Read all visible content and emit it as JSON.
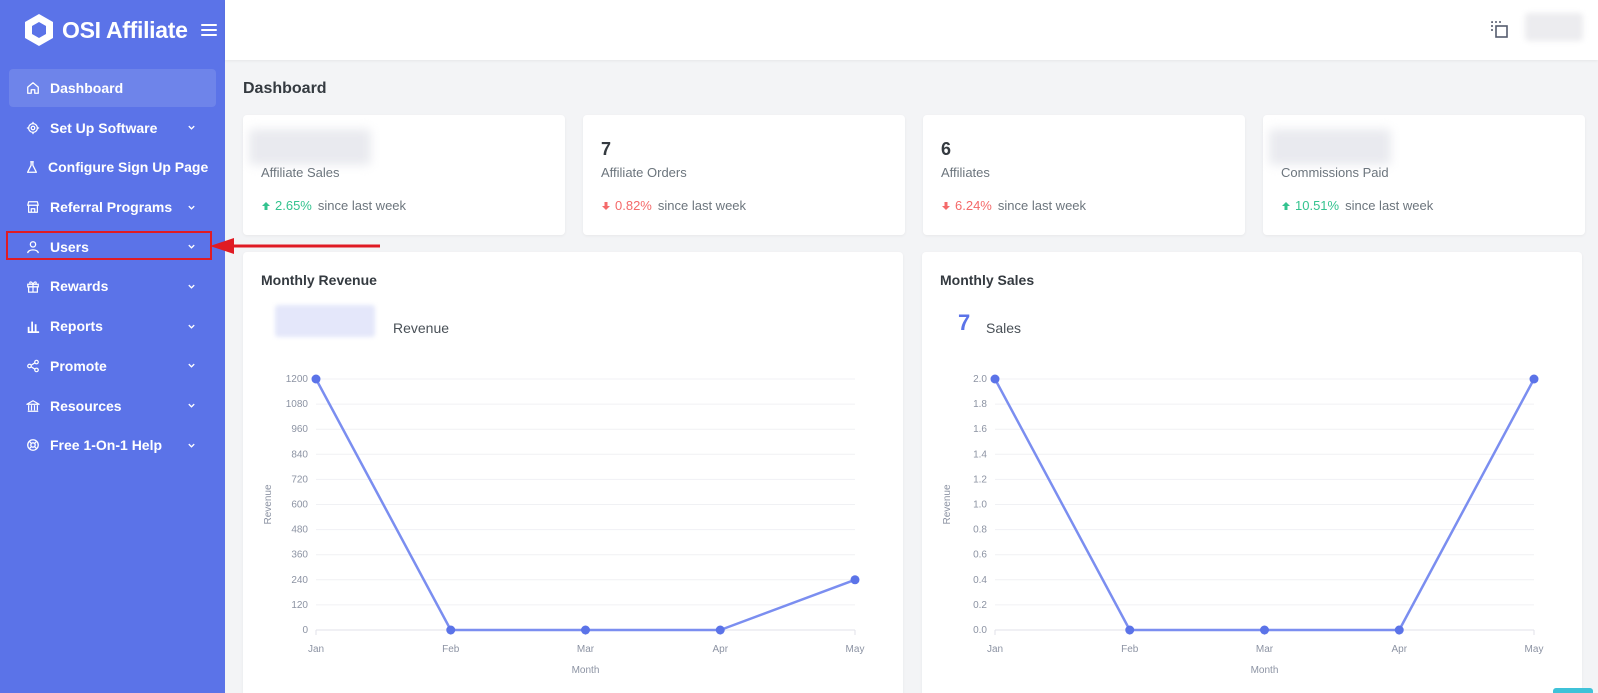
{
  "brand": {
    "name": "OSI Affiliate"
  },
  "sidebar": {
    "items": [
      {
        "label": "Dashboard",
        "icon": "home-icon",
        "active": true,
        "has_chevron": false
      },
      {
        "label": "Set Up Software",
        "icon": "gear-icon",
        "active": false,
        "has_chevron": true
      },
      {
        "label": "Configure Sign Up Page",
        "icon": "flask-icon",
        "active": false,
        "has_chevron": false
      },
      {
        "label": "Referral Programs",
        "icon": "store-icon",
        "active": false,
        "has_chevron": true
      },
      {
        "label": "Users",
        "icon": "user-icon",
        "active": false,
        "has_chevron": true
      },
      {
        "label": "Rewards",
        "icon": "gift-icon",
        "active": false,
        "has_chevron": true
      },
      {
        "label": "Reports",
        "icon": "bar-chart-icon",
        "active": false,
        "has_chevron": true
      },
      {
        "label": "Promote",
        "icon": "share-icon",
        "active": false,
        "has_chevron": true
      },
      {
        "label": "Resources",
        "icon": "bank-icon",
        "active": false,
        "has_chevron": true
      },
      {
        "label": "Free 1-On-1 Help",
        "icon": "lifebuoy-icon",
        "active": false,
        "has_chevron": true
      }
    ]
  },
  "page": {
    "title": "Dashboard"
  },
  "stats": [
    {
      "value": "",
      "label": "Affiliate Sales",
      "change": "2.65%",
      "direction": "up",
      "since": "since last week"
    },
    {
      "value": "7",
      "label": "Affiliate Orders",
      "change": "0.82%",
      "direction": "down",
      "since": "since last week"
    },
    {
      "value": "6",
      "label": "Affiliates",
      "change": "6.24%",
      "direction": "down",
      "since": "since last week"
    },
    {
      "value": "",
      "label": "Commissions Paid",
      "change": "10.51%",
      "direction": "up",
      "since": "since last week"
    }
  ],
  "revenue_card": {
    "title": "Monthly Revenue",
    "value": "",
    "label": "Revenue"
  },
  "sales_card": {
    "title": "Monthly Sales",
    "value": "7",
    "label": "Sales"
  },
  "colors": {
    "accent": "#5b73e8",
    "up": "#34c38f",
    "down": "#f46a6a",
    "line": "#7b8ef0",
    "annotation": "#e01b24"
  },
  "chart_data": [
    {
      "type": "line",
      "x": [
        "Jan",
        "Feb",
        "Mar",
        "Apr",
        "May"
      ],
      "series": [
        {
          "values": [
            1200,
            0,
            0,
            0,
            240
          ]
        }
      ],
      "xlabel": "Month",
      "ylabel": "Revenue",
      "ylim": [
        0,
        1200
      ],
      "yticks": [
        "0",
        "120",
        "240",
        "360",
        "480",
        "600",
        "720",
        "840",
        "960",
        "1080",
        "1200"
      ],
      "grid": true
    },
    {
      "type": "line",
      "x": [
        "Jan",
        "Feb",
        "Mar",
        "Apr",
        "May"
      ],
      "series": [
        {
          "values": [
            2.0,
            0,
            0,
            0,
            2.0
          ]
        }
      ],
      "xlabel": "Month",
      "ylabel": "Revenue",
      "ylim": [
        0,
        2
      ],
      "yticks": [
        "0.0",
        "0.2",
        "0.4",
        "0.6",
        "0.8",
        "1.0",
        "1.2",
        "1.4",
        "1.6",
        "1.8",
        "2.0"
      ],
      "grid": true
    }
  ]
}
